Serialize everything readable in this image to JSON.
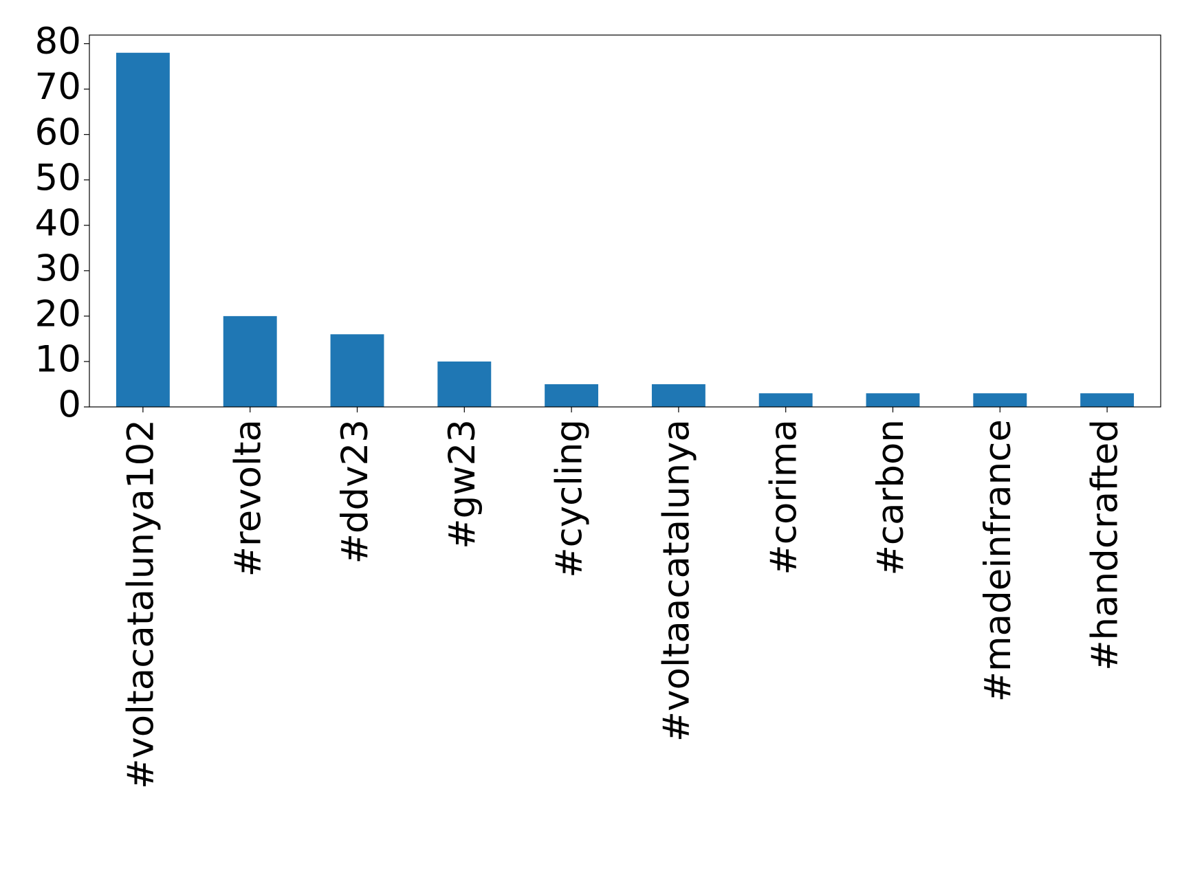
{
  "chart_data": {
    "type": "bar",
    "categories": [
      "#voltacatalunya102",
      "#revolta",
      "#ddv23",
      "#gw23",
      "#cycling",
      "#voltaacatalunya",
      "#corima",
      "#carbon",
      "#madeinfrance",
      "#handcrafted"
    ],
    "values": [
      78,
      20,
      16,
      10,
      5,
      5,
      3,
      3,
      3,
      3
    ],
    "color": "#1f77b4",
    "ylim": [
      0,
      81.9
    ],
    "yticks": [
      0,
      10,
      20,
      30,
      40,
      50,
      60,
      70,
      80
    ],
    "grid": false
  }
}
